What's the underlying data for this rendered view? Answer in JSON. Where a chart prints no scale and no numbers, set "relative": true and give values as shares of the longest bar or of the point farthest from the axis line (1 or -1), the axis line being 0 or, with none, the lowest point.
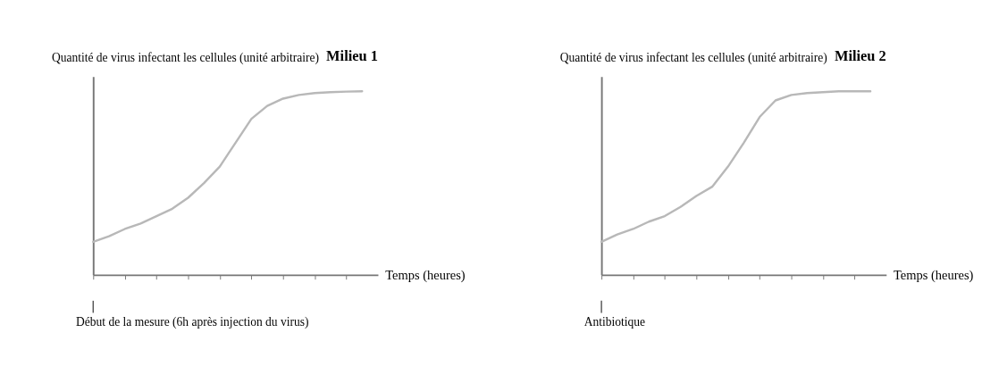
{
  "chart_data": [
    {
      "type": "line",
      "title": "Milieu 1",
      "ylabel": "Quantité de virus infectant les cellules (unité arbitraire)",
      "xlabel": "Temps (heures)",
      "relative": true,
      "tick_labels": false,
      "grid": false,
      "categories": [
        null,
        null,
        null,
        null,
        null,
        null,
        null,
        null,
        null,
        null,
        null,
        null,
        null,
        null,
        null,
        null,
        null,
        null
      ],
      "series": [
        {
          "color": "#b8b8b8",
          "values": [
            0.18,
            0.21,
            0.25,
            0.28,
            0.32,
            0.36,
            0.42,
            0.5,
            0.59,
            0.72,
            0.85,
            0.92,
            0.96,
            0.98,
            0.99,
            0.995,
            0.998,
            1
          ]
        }
      ],
      "annotations": [
        "Début de la mesure (6h après injection du virus)"
      ]
    },
    {
      "type": "line",
      "title": "Milieu 2",
      "ylabel": "Quantité de virus infectant les cellules (unité arbitraire)",
      "xlabel": "Temps (heures)",
      "relative": true,
      "tick_labels": false,
      "grid": false,
      "categories": [
        null,
        null,
        null,
        null,
        null,
        null,
        null,
        null,
        null,
        null,
        null,
        null,
        null,
        null,
        null,
        null,
        null,
        null
      ],
      "series": [
        {
          "color": "#b8b8b8",
          "values": [
            0.18,
            0.22,
            0.25,
            0.29,
            0.32,
            0.37,
            0.43,
            0.48,
            0.59,
            0.72,
            0.86,
            0.95,
            0.98,
            0.99,
            0.995,
            1,
            1,
            1
          ]
        }
      ],
      "annotations": [
        "Antibiotique"
      ]
    }
  ]
}
